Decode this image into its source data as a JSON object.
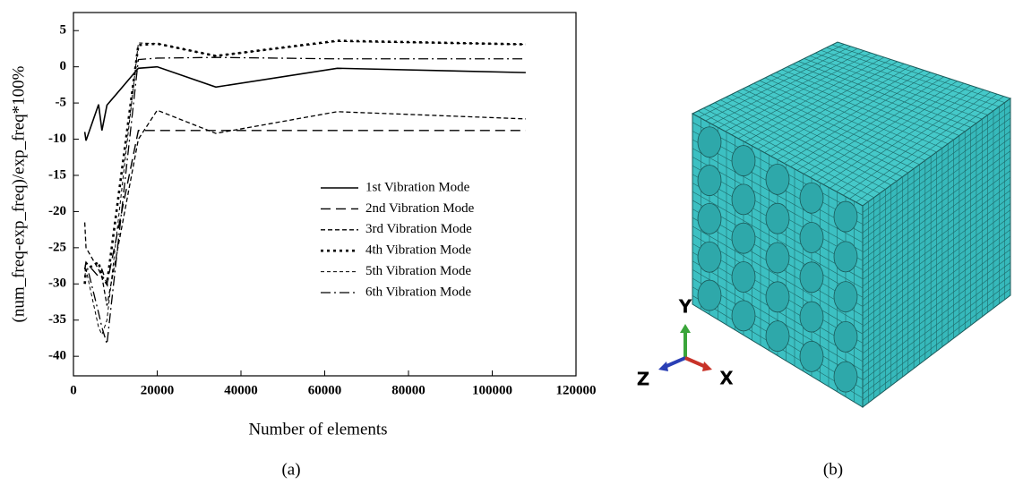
{
  "chart_data": {
    "type": "line",
    "x_label": "Number of elements",
    "y_label": "(num_freq-exp_freq)/exp_freq*100%",
    "x": [
      2700,
      3000,
      6000,
      6800,
      8000,
      15500,
      20000,
      34000,
      63000,
      108000
    ],
    "series": [
      {
        "name": "1st Vibration Mode",
        "color": "#000000",
        "dash": "solid",
        "values": [
          -9,
          -10.2,
          -5.2,
          -8.8,
          -5.3,
          -0.2,
          0,
          -2.8,
          -0.2,
          -0.8
        ]
      },
      {
        "name": "2nd Vibration Mode",
        "color": "#000000",
        "dash": "long-dash",
        "values": [
          -28,
          -27,
          -29,
          -28,
          -30,
          -8.8,
          -8.8,
          -8.8,
          -8.8,
          -8.8
        ]
      },
      {
        "name": "3rd Vibration Mode",
        "color": "#000000",
        "dash": "dash",
        "values": [
          -21.5,
          -25,
          -28,
          -29,
          -33,
          -10,
          -6,
          -9.2,
          -6.2,
          -7.2
        ]
      },
      {
        "name": "4th Vibration Mode",
        "color": "#000000",
        "dash": "dot",
        "values": [
          -30,
          -28,
          -27,
          -29,
          -30,
          3,
          3.2,
          1.5,
          3.6,
          3.1
        ]
      },
      {
        "name": "5th Vibration Mode",
        "color": "#000000",
        "dash": "fine-dash",
        "values": [
          -29,
          -28,
          -36,
          -37,
          -35,
          3.3,
          3.2,
          1.5,
          3.5,
          3.1
        ]
      },
      {
        "name": "6th Vibration Mode",
        "color": "#000000",
        "dash": "dash-dot",
        "values": [
          -28,
          -27,
          -34,
          -36,
          -38.3,
          1,
          1.2,
          1.3,
          1.1,
          1.1
        ]
      }
    ],
    "xlim": [
      0,
      120000
    ],
    "xticks": [
      0,
      20000,
      40000,
      60000,
      80000,
      100000,
      120000
    ],
    "ylim": [
      -42.7,
      7.5
    ],
    "yticks": [
      5,
      0,
      -5,
      -10,
      -15,
      -20,
      -25,
      -30,
      -35,
      -40
    ],
    "grid": false,
    "legend": "center-right"
  },
  "panel_labels": [
    "(a)",
    "(b)"
  ],
  "figure_b": {
    "axis_labels": {
      "y": "Y",
      "z": "Z",
      "x": "X"
    }
  }
}
